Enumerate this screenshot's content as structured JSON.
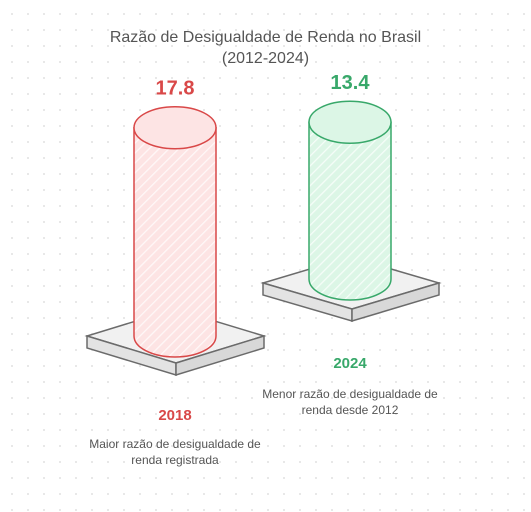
{
  "header": {
    "title_line1": "Razão de Desigualdade de Renda no Brasil",
    "title_line2": "(2012-2024)"
  },
  "colors": {
    "red_stroke": "#d94848",
    "red_fill": "#fde4e4",
    "green_stroke": "#38a86a",
    "green_fill": "#dcf6e6",
    "base_stroke": "#6b6b6b",
    "base_fill": "#e9e9e9"
  },
  "chart_data": {
    "type": "bar",
    "categories": [
      "2018",
      "2024"
    ],
    "values": [
      17.8,
      13.4
    ],
    "value_labels": [
      "17.8",
      "13.4"
    ],
    "descriptions": [
      "Maior razão de desigualdade de renda registrada",
      "Menor razão de desigualdade de renda desde 2012"
    ],
    "title": "Razão de Desigualdade de Renda no Brasil (2012-2024)",
    "xlabel": "",
    "ylabel": "",
    "grid": false,
    "legend": "none"
  }
}
